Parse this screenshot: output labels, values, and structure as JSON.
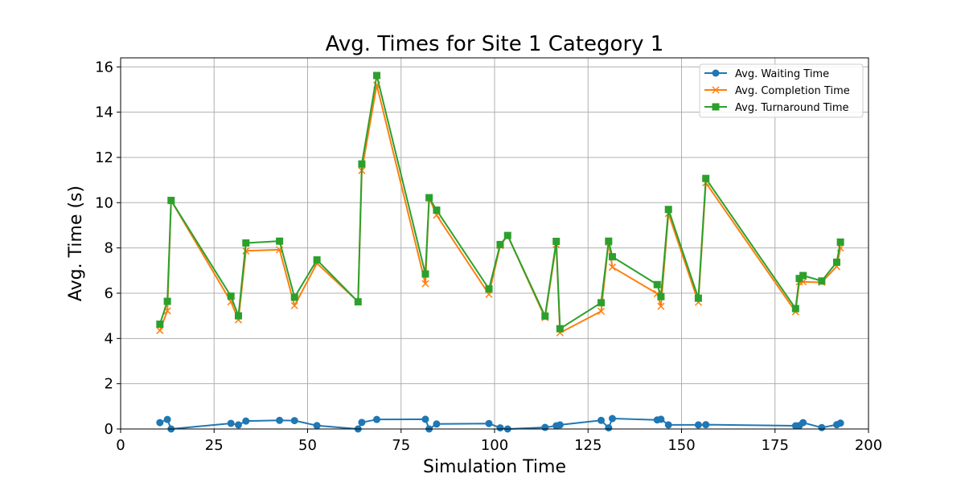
{
  "chart_data": {
    "type": "line",
    "title": "Avg. Times for Site 1 Category 1",
    "xlabel": "Simulation Time",
    "ylabel": "Avg. Time (s)",
    "xlim": [
      0,
      200
    ],
    "ylim": [
      0,
      16.4
    ],
    "xticks": [
      0,
      25,
      50,
      75,
      100,
      125,
      150,
      175,
      200
    ],
    "yticks": [
      0,
      2,
      4,
      6,
      8,
      10,
      12,
      14,
      16
    ],
    "grid": true,
    "legend_position": "top-right",
    "x": [
      10.5,
      12.5,
      13.5,
      29.5,
      31.5,
      33.5,
      42.5,
      46.5,
      52.5,
      63.5,
      64.5,
      68.5,
      81.5,
      82.5,
      84.5,
      98.5,
      101.5,
      103.5,
      113.5,
      116.5,
      117.5,
      128.5,
      130.5,
      131.5,
      143.5,
      144.5,
      146.5,
      154.5,
      156.5,
      180.5,
      181.5,
      182.5,
      187.5,
      191.5,
      192.5
    ],
    "series": [
      {
        "name": "Avg. Waiting Time",
        "color": "#1f77b4",
        "marker": "circle",
        "values": [
          0.28,
          0.42,
          0.0,
          0.25,
          0.18,
          0.35,
          0.38,
          0.37,
          0.15,
          0.0,
          0.29,
          0.42,
          0.43,
          0.0,
          0.22,
          0.24,
          0.05,
          0.0,
          0.07,
          0.14,
          0.18,
          0.38,
          0.05,
          0.46,
          0.4,
          0.43,
          0.18,
          0.18,
          0.19,
          0.14,
          0.15,
          0.28,
          0.06,
          0.19,
          0.26
        ]
      },
      {
        "name": "Avg. Completion Time",
        "color": "#ff7f0e",
        "marker": "x",
        "values": [
          4.35,
          5.22,
          10.1,
          5.62,
          4.82,
          7.87,
          7.92,
          5.45,
          7.32,
          5.62,
          11.42,
          15.2,
          6.42,
          10.22,
          9.45,
          5.95,
          8.1,
          8.55,
          4.92,
          8.15,
          4.25,
          5.2,
          8.25,
          7.15,
          5.98,
          5.42,
          9.52,
          5.6,
          10.88,
          5.18,
          6.5,
          6.5,
          6.48,
          7.18,
          8.0
        ]
      },
      {
        "name": "Avg. Turnaround Time",
        "color": "#2ca02c",
        "marker": "square",
        "values": [
          4.63,
          5.64,
          10.1,
          5.87,
          5.0,
          8.22,
          8.3,
          5.82,
          7.47,
          5.62,
          11.71,
          15.62,
          6.85,
          10.22,
          9.67,
          6.19,
          8.15,
          8.55,
          4.99,
          8.29,
          4.43,
          5.58,
          8.3,
          7.61,
          6.38,
          5.85,
          9.7,
          5.78,
          11.07,
          5.32,
          6.65,
          6.78,
          6.54,
          7.37,
          8.26
        ]
      }
    ]
  }
}
